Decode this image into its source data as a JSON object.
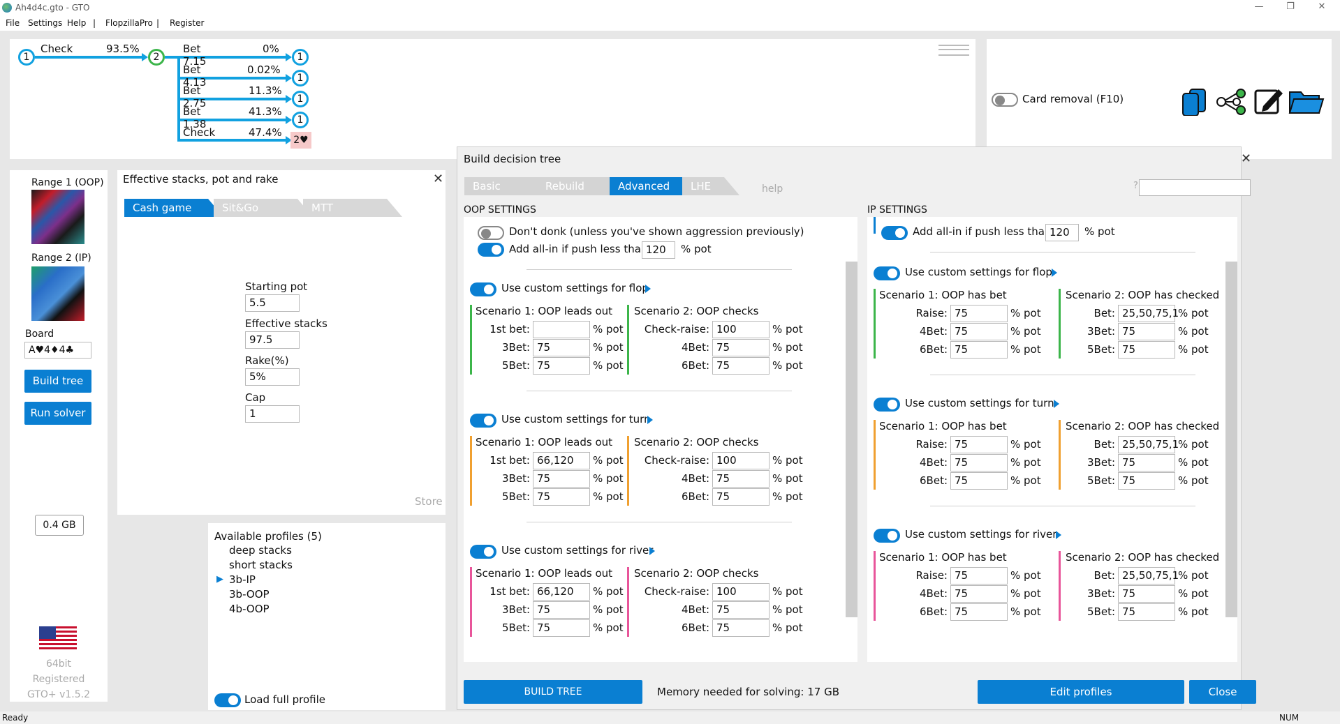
{
  "window": {
    "title": "Ah4d4c.gto - GTO"
  },
  "menu": {
    "file": "File",
    "settings": "Settings",
    "help": "Help",
    "sep1": "|",
    "flopzilla": "FlopzillaPro",
    "sep2": "|",
    "register": "Register"
  },
  "tree": {
    "root_node": "1",
    "check_label": "Check",
    "check_pct": "93.5%",
    "mid_node": "2",
    "edges": [
      {
        "label": "Bet 7.15",
        "pct": "0%",
        "node": "1"
      },
      {
        "label": "Bet 4.13",
        "pct": "0.02%",
        "node": "1"
      },
      {
        "label": "Bet 2.75",
        "pct": "11.3%",
        "node": "1"
      },
      {
        "label": "Bet 1.38",
        "pct": "41.3%",
        "node": "1"
      },
      {
        "label": "Check",
        "pct": "47.4%",
        "node": "2♥"
      }
    ]
  },
  "card_removal": {
    "label": "Card removal (F10)"
  },
  "toolbar_icons": [
    "copy-icon",
    "tree-icon",
    "edit-icon",
    "folder-icon"
  ],
  "sidebar": {
    "range1_label": "Range 1 (OOP)",
    "range2_label": "Range 2 (IP)",
    "board_label": "Board",
    "board_value": "A♥4♦4♣",
    "build_tree": "Build tree",
    "run_solver": "Run solver",
    "memory": "0.4 GB",
    "bits": "64bit",
    "registered": "Registered",
    "version": "GTO+ v1.5.2"
  },
  "stacks": {
    "title": "Effective stacks, pot and rake",
    "tabs": [
      "Cash game",
      "Sit&Go",
      "MTT"
    ],
    "starting_pot_label": "Starting pot",
    "starting_pot": "5.5",
    "eff_stacks_label": "Effective stacks",
    "eff_stacks": "97.5",
    "rake_label": "Rake(%)",
    "rake": "5%",
    "cap_label": "Cap",
    "cap": "1",
    "store": "Store"
  },
  "profiles": {
    "title": "Available profiles (5)",
    "items": [
      "deep stacks",
      "short stacks",
      "3b-IP",
      "3b-OOP",
      "4b-OOP"
    ],
    "selected_marker": "▶",
    "load_full": "Load full profile"
  },
  "build": {
    "title": "Build decision tree",
    "tabs": [
      "Basic",
      "Rebuild",
      "Advanced",
      "LHE"
    ],
    "help": "help",
    "search_q": "?",
    "oop_title": "OOP SETTINGS",
    "ip_title": "IP SETTINGS",
    "dont_donk": "Don't donk (unless you've shown aggression previously)",
    "allin_label": "Add all-in if push less than",
    "allin_oop": "120",
    "allin_ip": "120",
    "pct_pot": "% pot",
    "streets": [
      {
        "title": "Use custom settings for flop",
        "color": "#3cb54a",
        "oop_s1_title": "Scenario 1: OOP leads out",
        "oop_s1": [
          {
            "l": "1st bet:",
            "v": ""
          },
          {
            "l": "3Bet:",
            "v": "75"
          },
          {
            "l": "5Bet:",
            "v": "75"
          }
        ],
        "oop_s2_title": "Scenario 2: OOP checks",
        "oop_s2": [
          {
            "l": "Check-raise:",
            "v": "100"
          },
          {
            "l": "4Bet:",
            "v": "75"
          },
          {
            "l": "6Bet:",
            "v": "75"
          }
        ],
        "ip_s1_title": "Scenario 1: OOP has bet",
        "ip_s1": [
          {
            "l": "Raise:",
            "v": "75"
          },
          {
            "l": "4Bet:",
            "v": "75"
          },
          {
            "l": "6Bet:",
            "v": "75"
          }
        ],
        "ip_s2_title": "Scenario 2: OOP has checked",
        "ip_s2": [
          {
            "l": "Bet:",
            "v": "25,50,75,1"
          },
          {
            "l": "3Bet:",
            "v": "75"
          },
          {
            "l": "5Bet:",
            "v": "75"
          }
        ]
      },
      {
        "title": "Use custom settings for turn",
        "color": "#f0a030",
        "oop_s1_title": "Scenario 1: OOP leads out",
        "oop_s1": [
          {
            "l": "1st bet:",
            "v": "66,120"
          },
          {
            "l": "3Bet:",
            "v": "75"
          },
          {
            "l": "5Bet:",
            "v": "75"
          }
        ],
        "oop_s2_title": "Scenario 2: OOP checks",
        "oop_s2": [
          {
            "l": "Check-raise:",
            "v": "100"
          },
          {
            "l": "4Bet:",
            "v": "75"
          },
          {
            "l": "6Bet:",
            "v": "75"
          }
        ],
        "ip_s1_title": "Scenario 1: OOP has bet",
        "ip_s1": [
          {
            "l": "Raise:",
            "v": "75"
          },
          {
            "l": "4Bet:",
            "v": "75"
          },
          {
            "l": "6Bet:",
            "v": "75"
          }
        ],
        "ip_s2_title": "Scenario 2: OOP has checked",
        "ip_s2": [
          {
            "l": "Bet:",
            "v": "25,50,75,1"
          },
          {
            "l": "3Bet:",
            "v": "75"
          },
          {
            "l": "5Bet:",
            "v": "75"
          }
        ]
      },
      {
        "title": "Use custom settings for river",
        "color": "#e8559a",
        "oop_s1_title": "Scenario 1: OOP leads out",
        "oop_s1": [
          {
            "l": "1st bet:",
            "v": "66,120"
          },
          {
            "l": "3Bet:",
            "v": "75"
          },
          {
            "l": "5Bet:",
            "v": "75"
          }
        ],
        "oop_s2_title": "Scenario 2: OOP checks",
        "oop_s2": [
          {
            "l": "Check-raise:",
            "v": "100"
          },
          {
            "l": "4Bet:",
            "v": "75"
          },
          {
            "l": "6Bet:",
            "v": "75"
          }
        ],
        "ip_s1_title": "Scenario 1: OOP has bet",
        "ip_s1": [
          {
            "l": "Raise:",
            "v": "75"
          },
          {
            "l": "4Bet:",
            "v": "75"
          },
          {
            "l": "6Bet:",
            "v": "75"
          }
        ],
        "ip_s2_title": "Scenario 2: OOP has checked",
        "ip_s2": [
          {
            "l": "Bet:",
            "v": "25,50,75,1"
          },
          {
            "l": "3Bet:",
            "v": "75"
          },
          {
            "l": "5Bet:",
            "v": "75"
          }
        ]
      }
    ],
    "build_tree_btn": "BUILD TREE",
    "memory_needed": "Memory needed for solving: 17 GB",
    "edit_profiles": "Edit profiles",
    "close": "Close"
  },
  "status": {
    "left": "Ready",
    "right": "NUM"
  },
  "colors": {
    "accent": "#0a7fd2",
    "tree_blue": "#11a1e0",
    "flop": "#3cb54a",
    "turn": "#f0a030",
    "river": "#e8559a"
  }
}
